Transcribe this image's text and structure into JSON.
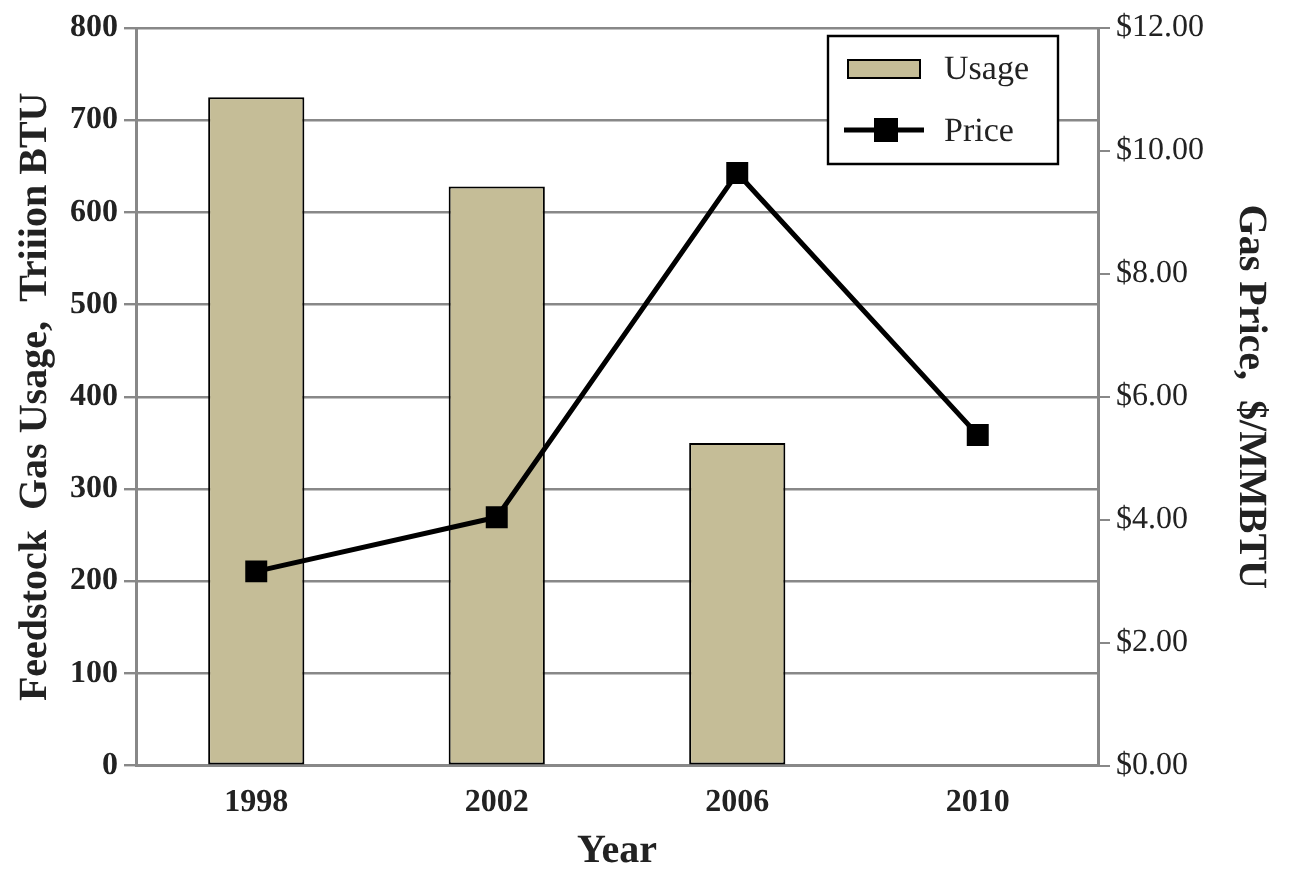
{
  "chart_data": {
    "type": "bar",
    "xlabel": "Year",
    "ylabel": "Feedstock  Gas Usage,  Triiion BTU",
    "y2label": "Gas Price,  $/MMBTU",
    "categories": [
      "1998",
      "2002",
      "2006",
      "2010"
    ],
    "series": [
      {
        "name": "Usage",
        "type": "bar",
        "color": "#c5bd97",
        "values": [
          725,
          628,
          350,
          null
        ]
      },
      {
        "name": "Price",
        "type": "line",
        "axis": "y2",
        "color": "#000000",
        "values": [
          3.16,
          4.04,
          9.64,
          5.38
        ]
      }
    ],
    "ylim": [
      0,
      800
    ],
    "yticks": [
      0,
      100,
      200,
      300,
      400,
      500,
      600,
      700,
      800
    ],
    "y2lim": [
      0,
      12
    ],
    "y2ticks": [
      {
        "value": 0,
        "label": "$0.00"
      },
      {
        "value": 2,
        "label": "$2.00"
      },
      {
        "value": 4,
        "label": "$4.00"
      },
      {
        "value": 6,
        "label": "$6.00"
      },
      {
        "value": 8,
        "label": "$8.00"
      },
      {
        "value": 10,
        "label": "$10.00"
      },
      {
        "value": 12,
        "label": "$12.00"
      }
    ],
    "grid": "y",
    "legend": "top right",
    "marker": "square",
    "line_style": "solid"
  }
}
